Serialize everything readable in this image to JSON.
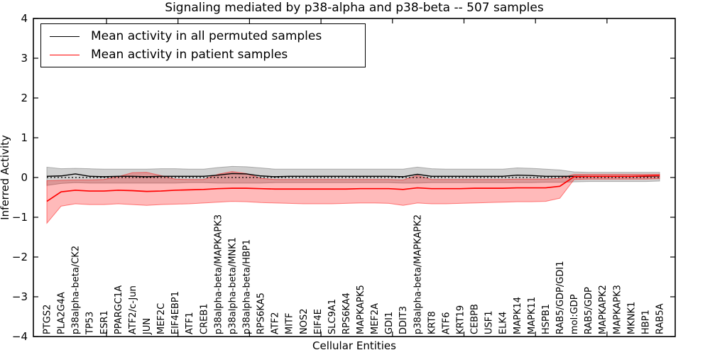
{
  "figure": {
    "background": "#ffffff"
  },
  "chart_data": {
    "type": "line",
    "title": "Signaling mediated by p38-alpha and p38-beta -- 507 samples",
    "xlabel": "Cellular Entities",
    "ylabel": "Inferred Activity",
    "ylim": [
      -4,
      4
    ],
    "yticks": [
      -4,
      -3,
      -2,
      -1,
      0,
      1,
      2,
      3,
      4
    ],
    "ytick_labels": [
      "−4",
      "−3",
      "−2",
      "−1",
      "0",
      "1",
      "2",
      "3",
      "4"
    ],
    "grid": false,
    "legend_position": "upper left",
    "zero_reference_line": {
      "y": 0,
      "style": "dotted",
      "color": "#000000"
    },
    "categories": [
      "PTGS2",
      "PLA2G4A",
      "p38alpha-beta/CK2",
      "TP53",
      "ESR1",
      "PPARGC1A",
      "ATF2/c-Jun",
      "JUN",
      "MEF2C",
      "EIF4EBP1",
      "ATF1",
      "CREB1",
      "p38alpha-beta/MAPKAPK3",
      "p38alpha-beta/MNK1",
      "p38alpha-beta/HBP1",
      "RPS6KA5",
      "ATF2",
      "MITF",
      "NOS2",
      "EIF4E",
      "SLC9A1",
      "RPS6KA4",
      "MAPKAPK5",
      "MEF2A",
      "GDI1",
      "DDIT3",
      "p38alpha-beta/MAPKAPK2",
      "KRT8",
      "ATF6",
      "KRT19",
      "CEBPB",
      "USF1",
      "ELK4",
      "MAPK14",
      "MAPK11",
      "HSPB1",
      "RAB5/GDP/GDI1",
      "mol:GDP",
      "RAB5/GDP",
      "MAPKAPK2",
      "MAPKAPK3",
      "MKNK1",
      "HBP1",
      "RAB5A"
    ],
    "series": [
      {
        "name": "Mean activity in all permuted samples",
        "color": "#000000",
        "band_color": "#787878",
        "band_alpha": 0.35,
        "values": [
          0.03,
          0.04,
          0.09,
          0.03,
          0.02,
          0.03,
          0.03,
          0.02,
          0.03,
          0.03,
          0.03,
          0.03,
          0.06,
          0.1,
          0.09,
          0.04,
          0.02,
          0.03,
          0.03,
          0.03,
          0.03,
          0.03,
          0.03,
          0.03,
          0.03,
          0.02,
          0.08,
          0.03,
          0.03,
          0.03,
          0.03,
          0.03,
          0.03,
          0.06,
          0.05,
          0.03,
          0.03,
          0.03,
          0.03,
          0.03,
          0.03,
          0.03,
          0.03,
          0.04
        ],
        "band_upper": [
          0.26,
          0.22,
          0.23,
          0.22,
          0.21,
          0.21,
          0.21,
          0.21,
          0.22,
          0.22,
          0.21,
          0.21,
          0.25,
          0.28,
          0.27,
          0.24,
          0.21,
          0.21,
          0.21,
          0.21,
          0.21,
          0.21,
          0.21,
          0.21,
          0.21,
          0.21,
          0.26,
          0.22,
          0.21,
          0.21,
          0.21,
          0.21,
          0.21,
          0.24,
          0.23,
          0.21,
          0.19,
          0.14,
          0.13,
          0.13,
          0.13,
          0.13,
          0.13,
          0.13
        ],
        "band_lower": [
          -0.2,
          -0.15,
          -0.13,
          -0.14,
          -0.14,
          -0.14,
          -0.14,
          -0.14,
          -0.14,
          -0.14,
          -0.13,
          -0.13,
          -0.14,
          -0.14,
          -0.14,
          -0.14,
          -0.13,
          -0.13,
          -0.13,
          -0.13,
          -0.13,
          -0.13,
          -0.13,
          -0.13,
          -0.13,
          -0.14,
          -0.14,
          -0.13,
          -0.13,
          -0.13,
          -0.13,
          -0.13,
          -0.13,
          -0.13,
          -0.13,
          -0.12,
          -0.12,
          -0.11,
          -0.1,
          -0.1,
          -0.1,
          -0.1,
          -0.1,
          -0.09
        ]
      },
      {
        "name": "Mean activity in patient samples",
        "color": "#ff0000",
        "band_color": "#ff0000",
        "band_alpha": 0.27,
        "values": [
          -0.6,
          -0.36,
          -0.32,
          -0.34,
          -0.34,
          -0.32,
          -0.33,
          -0.35,
          -0.34,
          -0.32,
          -0.31,
          -0.3,
          -0.28,
          -0.27,
          -0.27,
          -0.28,
          -0.29,
          -0.29,
          -0.29,
          -0.29,
          -0.29,
          -0.29,
          -0.28,
          -0.28,
          -0.28,
          -0.3,
          -0.26,
          -0.28,
          -0.28,
          -0.28,
          -0.27,
          -0.27,
          -0.27,
          -0.26,
          -0.26,
          -0.26,
          -0.22,
          0.02,
          0.03,
          0.03,
          0.03,
          0.03,
          0.04,
          0.05
        ],
        "band_upper": [
          -0.08,
          -0.07,
          -0.06,
          -0.06,
          -0.05,
          0.02,
          0.12,
          0.13,
          0.05,
          -0.04,
          -0.05,
          -0.05,
          0.08,
          0.15,
          0.1,
          -0.02,
          -0.05,
          -0.05,
          -0.05,
          -0.05,
          -0.05,
          -0.05,
          -0.05,
          -0.05,
          -0.05,
          -0.06,
          0.05,
          -0.05,
          -0.05,
          -0.05,
          -0.05,
          -0.05,
          -0.05,
          -0.04,
          -0.04,
          -0.04,
          -0.02,
          0.08,
          0.08,
          0.08,
          0.08,
          0.08,
          0.08,
          0.08
        ],
        "band_lower": [
          -1.15,
          -0.72,
          -0.66,
          -0.68,
          -0.68,
          -0.66,
          -0.68,
          -0.7,
          -0.68,
          -0.67,
          -0.66,
          -0.64,
          -0.62,
          -0.6,
          -0.61,
          -0.63,
          -0.64,
          -0.65,
          -0.66,
          -0.66,
          -0.66,
          -0.65,
          -0.64,
          -0.64,
          -0.65,
          -0.7,
          -0.64,
          -0.66,
          -0.66,
          -0.65,
          -0.64,
          -0.63,
          -0.62,
          -0.61,
          -0.61,
          -0.6,
          -0.52,
          -0.05,
          -0.04,
          -0.04,
          -0.04,
          -0.04,
          -0.04,
          -0.03
        ]
      }
    ]
  }
}
